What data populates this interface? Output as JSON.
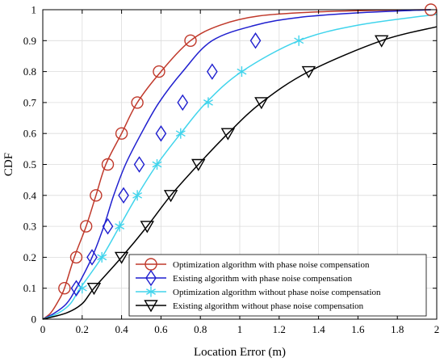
{
  "chart_data": {
    "type": "line",
    "xlabel": "Location Error (m)",
    "ylabel": "CDF",
    "xlim": [
      0,
      2
    ],
    "ylim": [
      0,
      1
    ],
    "xticks": [
      0,
      0.2,
      0.4,
      0.6,
      0.8,
      1,
      1.2,
      1.4,
      1.6,
      1.8,
      2
    ],
    "xtick_labels": [
      "0",
      "0.2",
      "0.4",
      "0.6",
      "0.8",
      "1",
      "1.2",
      "1.4",
      "1.6",
      "1.8",
      "2"
    ],
    "yticks": [
      0,
      0.1,
      0.2,
      0.3,
      0.4,
      0.5,
      0.6,
      0.7,
      0.8,
      0.9,
      1
    ],
    "ytick_labels": [
      "0",
      "0.1",
      "0.2",
      "0.3",
      "0.4",
      "0.5",
      "0.6",
      "0.7",
      "0.8",
      "0.9",
      "1"
    ],
    "grid": true,
    "legend_position": "bottom-right",
    "series": [
      {
        "name": "Optimization algorithm with phase noise compensation",
        "color": "#c0392b",
        "marker": "circle",
        "x": [
          0,
          0.04,
          0.08,
          0.11,
          0.16,
          0.22,
          0.27,
          0.32,
          0.4,
          0.48,
          0.6,
          0.75,
          0.9,
          1.1,
          1.4,
          1.7,
          1.97
        ],
        "y": [
          0,
          0.02,
          0.06,
          0.1,
          0.2,
          0.3,
          0.4,
          0.5,
          0.6,
          0.7,
          0.8,
          0.9,
          0.95,
          0.98,
          0.993,
          0.998,
          1.0
        ],
        "marker_x": [
          0.11,
          0.17,
          0.22,
          0.27,
          0.33,
          0.4,
          0.48,
          0.59,
          0.75,
          1.97
        ],
        "marker_y": [
          0.1,
          0.2,
          0.3,
          0.4,
          0.5,
          0.6,
          0.7,
          0.8,
          0.9,
          1.0
        ]
      },
      {
        "name": "Existing algorithm with phase noise compensation",
        "color": "#1f1fcf",
        "marker": "diamond",
        "x": [
          0,
          0.06,
          0.12,
          0.17,
          0.25,
          0.31,
          0.36,
          0.42,
          0.5,
          0.59,
          0.71,
          0.86,
          1.08,
          1.3,
          1.6,
          1.97
        ],
        "y": [
          0,
          0.02,
          0.05,
          0.1,
          0.2,
          0.3,
          0.4,
          0.5,
          0.6,
          0.7,
          0.8,
          0.9,
          0.95,
          0.975,
          0.99,
          1.0
        ],
        "marker_x": [
          0.17,
          0.25,
          0.33,
          0.41,
          0.49,
          0.6,
          0.71,
          0.86,
          1.08
        ],
        "marker_y": [
          0.1,
          0.2,
          0.3,
          0.4,
          0.5,
          0.6,
          0.7,
          0.8,
          0.9
        ]
      },
      {
        "name": "Optimization algorithm without phase noise compensation",
        "color": "#40d4ec",
        "marker": "asterisk",
        "x": [
          0,
          0.08,
          0.14,
          0.19,
          0.3,
          0.39,
          0.48,
          0.58,
          0.7,
          0.83,
          1.01,
          1.3,
          1.6,
          2.0
        ],
        "y": [
          0,
          0.02,
          0.05,
          0.1,
          0.2,
          0.3,
          0.4,
          0.5,
          0.6,
          0.7,
          0.8,
          0.9,
          0.95,
          0.985
        ],
        "marker_x": [
          0.2,
          0.3,
          0.39,
          0.48,
          0.58,
          0.7,
          0.84,
          1.01,
          1.3
        ],
        "marker_y": [
          0.1,
          0.2,
          0.3,
          0.4,
          0.5,
          0.6,
          0.7,
          0.8,
          0.9
        ]
      },
      {
        "name": "Existing algorithm without phase noise compensation",
        "color": "#000000",
        "marker": "triangle-down",
        "x": [
          0,
          0.12,
          0.2,
          0.26,
          0.4,
          0.53,
          0.65,
          0.79,
          0.94,
          1.11,
          1.35,
          1.72,
          2.0
        ],
        "y": [
          0,
          0.02,
          0.05,
          0.1,
          0.2,
          0.3,
          0.4,
          0.5,
          0.6,
          0.7,
          0.8,
          0.9,
          0.945
        ],
        "marker_x": [
          0.26,
          0.4,
          0.53,
          0.65,
          0.79,
          0.94,
          1.11,
          1.35,
          1.72
        ],
        "marker_y": [
          0.1,
          0.2,
          0.3,
          0.4,
          0.5,
          0.6,
          0.7,
          0.8,
          0.9
        ]
      }
    ]
  }
}
